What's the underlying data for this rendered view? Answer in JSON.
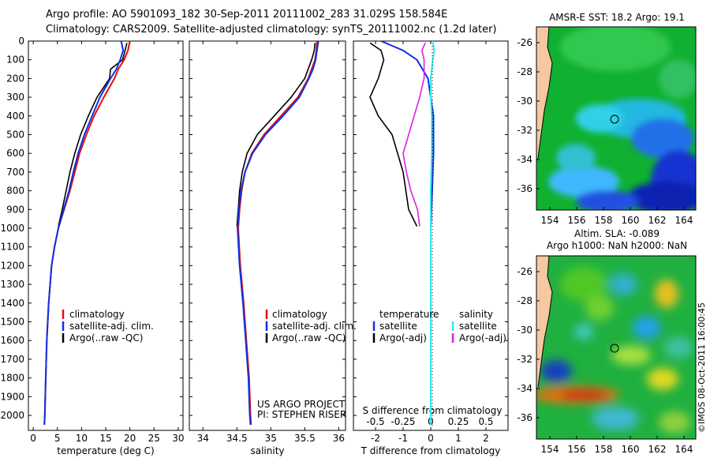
{
  "header": {
    "line1": "Argo profile: AO 5901093_182 30-Sep-2011 20111002_283 31.029S 158.584E",
    "line2": "Climatology: CARS2009. Satellite-adjusted climatology: synTS_20111002.nc (1.2d later)"
  },
  "colors": {
    "clim": "#e01010",
    "sat": "#1030e0",
    "argo": "#000000",
    "sal_sat": "#30e8f0",
    "sal_argo": "#e020e0"
  },
  "chart_data": [
    {
      "type": "line",
      "title": "",
      "xlabel": "temperature (deg C)",
      "ylabel": "",
      "xlim": [
        -1,
        31
      ],
      "ylim": [
        2080,
        0
      ],
      "xticks": [
        "0",
        "5",
        "10",
        "15",
        "20",
        "25",
        "30"
      ],
      "yticks": [
        "0",
        "100",
        "200",
        "300",
        "400",
        "500",
        "600",
        "700",
        "800",
        "900",
        "1000",
        "1100",
        "1200",
        "1300",
        "1400",
        "1500",
        "1600",
        "1700",
        "1800",
        "1900",
        "2000"
      ],
      "legend": [
        "climatology",
        "satellite-adj. clim.",
        "Argo(..raw -QC)"
      ],
      "series": [
        {
          "name": "climatology",
          "depth": [
            0,
            50,
            100,
            150,
            200,
            300,
            400,
            500,
            600,
            700,
            800,
            900,
            1000,
            1100,
            1200,
            1400,
            1600,
            1800,
            2000,
            2050
          ],
          "values": [
            20,
            19.6,
            18.8,
            17.6,
            16.8,
            14.6,
            12.6,
            11.0,
            9.6,
            8.6,
            7.6,
            6.4,
            5.2,
            4.4,
            3.8,
            3.2,
            2.8,
            2.6,
            2.4,
            2.3
          ]
        },
        {
          "name": "satellite-adj. clim.",
          "depth": [
            0,
            50,
            100,
            150,
            200,
            300,
            400,
            500,
            600,
            700,
            800,
            900,
            1000,
            1100,
            1200,
            1400,
            1600,
            1800,
            2000,
            2050
          ],
          "values": [
            18.2,
            18.6,
            18.0,
            17.2,
            16.0,
            13.8,
            12.2,
            10.6,
            9.3,
            8.3,
            7.4,
            6.3,
            5.2,
            4.4,
            3.8,
            3.2,
            2.8,
            2.6,
            2.4,
            2.3
          ]
        },
        {
          "name": "Argo(..raw -QC)",
          "depth": [
            10,
            50,
            100,
            150,
            200,
            300,
            400,
            500,
            600,
            700,
            800,
            900,
            990
          ],
          "values": [
            19.4,
            19.0,
            18.5,
            16.0,
            15.8,
            13.2,
            11.4,
            9.8,
            8.6,
            7.6,
            6.8,
            6.0,
            5.2
          ]
        }
      ]
    },
    {
      "type": "line",
      "title": "",
      "xlabel": "salinity",
      "xlim": [
        33.8,
        36.1
      ],
      "ylim": [
        2080,
        0
      ],
      "xticks": [
        "34",
        "34.5",
        "35",
        "35.5",
        "36"
      ],
      "legend": [
        "climatology",
        "satellite-adj. clim.",
        "Argo(..raw -QC)"
      ],
      "annotation": [
        "US ARGO PROJECT",
        "PI: STEPHEN RISER"
      ],
      "series": [
        {
          "name": "climatology",
          "depth": [
            0,
            50,
            100,
            150,
            200,
            300,
            400,
            500,
            600,
            700,
            800,
            900,
            1000,
            1200,
            1400,
            1600,
            1800,
            2000,
            2050
          ],
          "values": [
            35.68,
            35.67,
            35.65,
            35.6,
            35.55,
            35.4,
            35.15,
            34.9,
            34.72,
            34.62,
            34.57,
            34.54,
            34.52,
            34.55,
            34.6,
            34.64,
            34.68,
            34.7,
            34.71
          ]
        },
        {
          "name": "satellite-adj. clim.",
          "depth": [
            0,
            50,
            100,
            150,
            200,
            300,
            400,
            500,
            600,
            700,
            800,
            900,
            1000,
            1200,
            1400,
            1600,
            1800,
            2000,
            2050
          ],
          "values": [
            35.7,
            35.68,
            35.66,
            35.62,
            35.56,
            35.42,
            35.18,
            34.92,
            34.73,
            34.62,
            34.56,
            34.53,
            34.51,
            34.54,
            34.59,
            34.63,
            34.67,
            34.69,
            34.7
          ]
        },
        {
          "name": "Argo(..raw -QC)",
          "depth": [
            10,
            50,
            100,
            200,
            300,
            400,
            500,
            600,
            700,
            800,
            900,
            990
          ],
          "values": [
            35.65,
            35.64,
            35.6,
            35.5,
            35.3,
            35.05,
            34.8,
            34.65,
            34.58,
            34.54,
            34.52,
            34.5
          ]
        }
      ]
    },
    {
      "type": "line",
      "xlabel": "T difference from climatology",
      "xlabel2": "S difference from climatology",
      "xlim": [
        -2.8,
        2.8
      ],
      "ylim": [
        2080,
        0
      ],
      "xticks": [
        "-2",
        "-1",
        "0",
        "1",
        "2"
      ],
      "xticks2": [
        "-0.5",
        "-0.25",
        "0",
        "0.25",
        "0.5"
      ],
      "legend_t": [
        "temperature",
        "satellite",
        "Argo(-adj)"
      ],
      "legend_s": [
        "salinity",
        "satellite",
        "Argo(-adj)"
      ],
      "series": [
        {
          "name": "T satellite",
          "depth": [
            0,
            50,
            100,
            200,
            400,
            600,
            800,
            1000,
            1400,
            2000,
            2050
          ],
          "values": [
            -1.8,
            -1.0,
            -0.5,
            -0.1,
            0.1,
            0.1,
            0.05,
            0.0,
            0.0,
            0.0,
            0.0
          ]
        },
        {
          "name": "T Argo(-adj)",
          "depth": [
            10,
            50,
            100,
            200,
            300,
            400,
            500,
            600,
            700,
            800,
            900,
            990
          ],
          "values": [
            -2.2,
            -1.8,
            -1.7,
            -1.9,
            -2.2,
            -1.9,
            -1.4,
            -1.2,
            -1.0,
            -0.9,
            -0.8,
            -0.5
          ]
        },
        {
          "name": "S satellite",
          "depth": [
            0,
            50,
            100,
            200,
            300,
            400,
            600,
            800,
            1000,
            1400,
            2000,
            2050
          ],
          "values": [
            0.02,
            0.03,
            0.02,
            0.0,
            0.0,
            0.01,
            0.01,
            0.0,
            0.0,
            0.0,
            0.0,
            0.0
          ]
        },
        {
          "name": "S Argo(-adj)",
          "depth": [
            10,
            50,
            100,
            200,
            300,
            400,
            500,
            600,
            700,
            800,
            900,
            990
          ],
          "values": [
            -0.05,
            -0.08,
            -0.06,
            -0.06,
            -0.1,
            -0.15,
            -0.2,
            -0.25,
            -0.22,
            -0.18,
            -0.12,
            -0.1
          ]
        }
      ]
    }
  ],
  "maps": {
    "sst_title": "AMSR-E SST: 18.2 Argo: 19.1",
    "sla_title1": "Altim. SLA: -0.089",
    "sla_title2": "Argo h1000: NaN h2000: NaN",
    "yticks": [
      "-26",
      "-28",
      "-30",
      "-32",
      "-34",
      "-36"
    ],
    "xticks": [
      "154",
      "156",
      "158",
      "160",
      "162",
      "164"
    ]
  },
  "stamp": "©IMOS 08-Oct-2011 16:00:45"
}
